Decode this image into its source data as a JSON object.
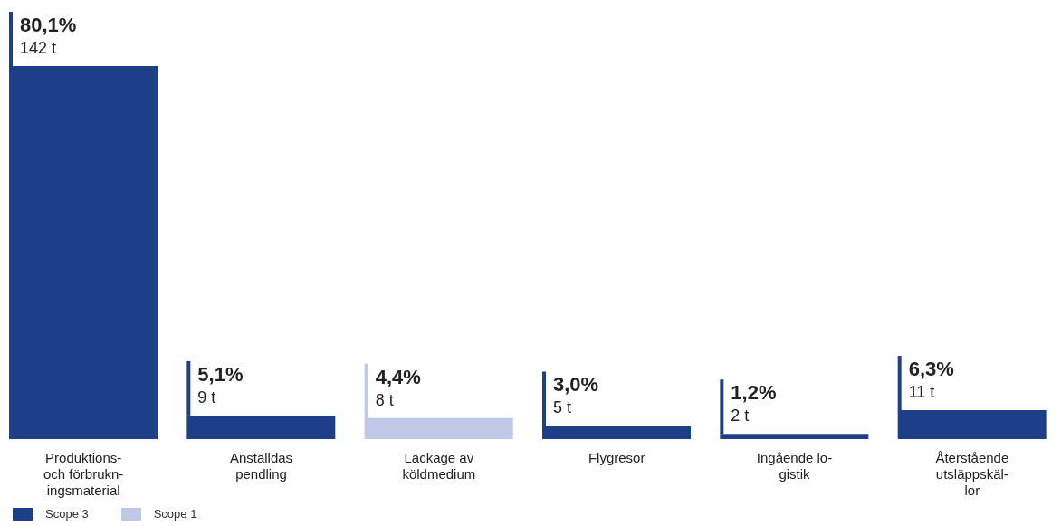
{
  "chart_data": {
    "type": "bar",
    "stacked": true,
    "legend": "bottom",
    "categories": [
      "Produktions-\noch förbrukn-\ningsmaterial",
      "Anställdas\npendling",
      "Läckage av\nköldmedium",
      "Flygresor",
      "Ingående lo-\ngistik",
      "Återstående\nutsläppskäl-\nlor"
    ],
    "series": [
      {
        "name": "Scope 3",
        "color": "#1c3f87",
        "values": [
          142,
          9,
          null,
          5,
          2,
          11
        ],
        "value_labels": [
          "80,1%\n142 t",
          "5,1%\n9 t",
          null,
          "3,0%\n5 t",
          "1,2%\n2 t",
          "6,3%\n11 t"
        ]
      },
      {
        "name": "Scope 1",
        "color": "#bfc8e6",
        "values": [
          null,
          null,
          8,
          null,
          null,
          null
        ],
        "value_labels": [
          null,
          null,
          "4,4%\n8 t",
          null,
          null,
          null
        ]
      }
    ]
  }
}
